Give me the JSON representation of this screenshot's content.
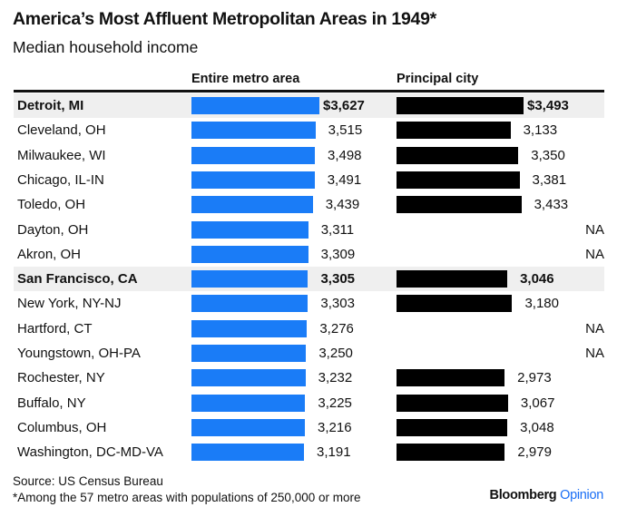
{
  "title": "America’s Most Affluent Metropolitan Areas in 1949*",
  "subtitle": "Median household income",
  "footer": {
    "source": "Source: US Census Bureau",
    "note": "*Among the 57 metro areas with populations of 250,000 or more",
    "brand": "Bloomberg",
    "brand_suffix": "Opinion"
  },
  "colors": {
    "metro": "#1a7cf7",
    "city": "#000000",
    "highlight": "#efefef",
    "brand_accent": "#1a6ef5"
  },
  "chart_data": {
    "type": "bar",
    "title": "America’s Most Affluent Metropolitan Areas in 1949*",
    "subtitle": "Median household income",
    "unit": "$",
    "categories": [
      "Detroit, MI",
      "Cleveland, OH",
      "Milwaukee, WI",
      "Chicago, IL-IN",
      "Toledo, OH",
      "Dayton, OH",
      "Akron, OH",
      "San Francisco, CA",
      "New York, NY-NJ",
      "Hartford, CT",
      "Youngstown, OH-PA",
      "Rochester, NY",
      "Buffalo, NY",
      "Columbus, OH",
      "Washington, DC-MD-VA"
    ],
    "highlighted": [
      "Detroit, MI",
      "San Francisco, CA"
    ],
    "series": [
      {
        "name": "Entire metro area",
        "values": [
          3627,
          3515,
          3498,
          3491,
          3439,
          3311,
          3309,
          3305,
          3303,
          3276,
          3250,
          3232,
          3225,
          3216,
          3191
        ],
        "labels": [
          "$3,627",
          "3,515",
          "3,498",
          "3,491",
          "3,439",
          "3,311",
          "3,309",
          "3,305",
          "3,303",
          "3,276",
          "3,250",
          "3,232",
          "3,225",
          "3,216",
          "3,191"
        ]
      },
      {
        "name": "Principal city",
        "values": [
          3493,
          3133,
          3350,
          3381,
          3433,
          null,
          null,
          3046,
          3180,
          null,
          null,
          2973,
          3067,
          3048,
          2979
        ],
        "labels": [
          "$3,493",
          "3,133",
          "3,350",
          "3,381",
          "3,433",
          "NA",
          "NA",
          "3,046",
          "3,180",
          "NA",
          "NA",
          "2,973",
          "3,067",
          "3,048",
          "2,979"
        ]
      }
    ]
  }
}
